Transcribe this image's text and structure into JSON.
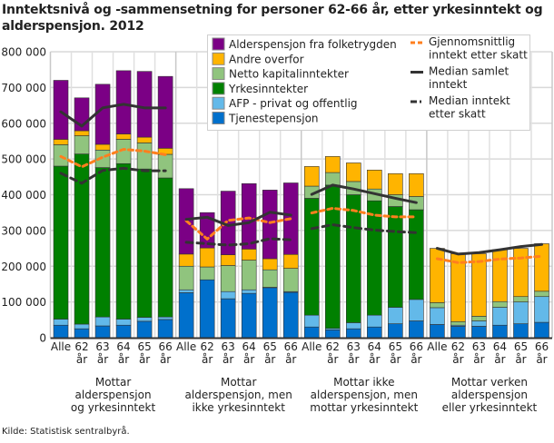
{
  "chart_data": {
    "type": "bar",
    "stacked": true,
    "title": "Inntektsnivå og -sammensetning for personer 62-66 år, etter yrkesinntekt og alderspensjon. 2012",
    "source": "Kilde: Statistisk sentralbyrå.",
    "ylim": [
      0,
      800000
    ],
    "yticks": [
      "0",
      "100 000",
      "200 000",
      "300 000",
      "400 000",
      "500 000",
      "600 000",
      "700 000",
      "800 000"
    ],
    "grid": true,
    "legend_position": "top-right",
    "category_labels": [
      [
        "Alle"
      ],
      [
        "62",
        "år"
      ],
      [
        "63",
        "år"
      ],
      [
        "64",
        "år"
      ],
      [
        "65",
        "år"
      ],
      [
        "66",
        "år"
      ]
    ],
    "groups": [
      {
        "label": [
          "Mottar",
          "alderspensjon",
          "og yrkesinntekt"
        ]
      },
      {
        "label": [
          "Mottar",
          "alderspensjon, men",
          "ikke yrkesinntekt"
        ]
      },
      {
        "label": [
          "Mottar ikke",
          "alderspensjon, men",
          "mottar yrkesinntekt"
        ]
      },
      {
        "label": [
          "Mottar verken",
          "alderspensjon",
          "eller yrkesinntekt"
        ]
      }
    ],
    "series": [
      {
        "name": "Tjenestepensjon",
        "color": "#0070cc",
        "values": [
          [
            35,
            25,
            33,
            35,
            46,
            51
          ],
          [
            126,
            162,
            109,
            124,
            140,
            127
          ],
          [
            30,
            22,
            25,
            30,
            39,
            47
          ],
          [
            37,
            32,
            32,
            35,
            39,
            43
          ]
        ]
      },
      {
        "name": "AFP - privat og offentlig",
        "color": "#63b9e9",
        "values": [
          [
            17,
            13,
            25,
            17,
            11,
            7
          ],
          [
            8,
            0,
            20,
            10,
            1,
            2
          ],
          [
            33,
            4,
            17,
            33,
            46,
            60
          ],
          [
            47,
            3,
            15,
            50,
            61,
            72
          ]
        ]
      },
      {
        "name": "Yrkesinntekter",
        "color": "#008000",
        "values": [
          [
            428,
            476,
            418,
            435,
            415,
            389
          ],
          [
            0,
            0,
            0,
            0,
            0,
            0
          ],
          [
            327,
            401,
            358,
            320,
            282,
            251
          ],
          [
            0,
            0,
            0,
            0,
            0,
            0
          ]
        ]
      },
      {
        "name": "Netto kapitalinntekter",
        "color": "#90c47e",
        "values": [
          [
            60,
            51,
            49,
            68,
            73,
            66
          ],
          [
            66,
            36,
            73,
            83,
            49,
            65
          ],
          [
            34,
            35,
            37,
            33,
            33,
            37
          ],
          [
            14,
            10,
            13,
            16,
            15,
            15
          ]
        ]
      },
      {
        "name": "Andre overfor",
        "color": "#ffb400",
        "values": [
          [
            15,
            14,
            16,
            15,
            16,
            17
          ],
          [
            34,
            53,
            30,
            31,
            31,
            39
          ],
          [
            55,
            45,
            52,
            53,
            59,
            64
          ],
          [
            152,
            190,
            175,
            145,
            135,
            133
          ]
        ]
      },
      {
        "name": "Alderspensjon fra folketrygden",
        "color": "#7b0085",
        "values": [
          [
            165,
            92,
            168,
            177,
            184,
            201
          ],
          [
            183,
            99,
            178,
            183,
            192,
            200
          ],
          [
            0,
            0,
            0,
            0,
            0,
            0
          ],
          [
            0,
            0,
            0,
            0,
            0,
            0
          ]
        ]
      }
    ],
    "value_unit_multiplier": 1000,
    "lines": [
      {
        "name": "Gjennomsnittlig inntekt etter skatt",
        "color": "#ff7f1e",
        "style": "dashed",
        "values": [
          [
            507,
            478,
            505,
            527,
            522,
            512
          ],
          [
            327,
            276,
            328,
            335,
            322,
            333
          ],
          [
            349,
            362,
            356,
            343,
            338,
            338
          ],
          [
            221,
            210,
            213,
            220,
            223,
            228
          ]
        ]
      },
      {
        "name": "Median samlet inntekt",
        "color": "#333333",
        "style": "solid",
        "values": [
          [
            632,
            592,
            643,
            653,
            643,
            643
          ],
          [
            331,
            337,
            314,
            322,
            351,
            343
          ],
          [
            401,
            427,
            416,
            403,
            390,
            378
          ],
          [
            250,
            234,
            238,
            246,
            255,
            261
          ]
        ]
      },
      {
        "name": "Median inntekt etter skatt",
        "color": "#333333",
        "style": "dash-dot",
        "values": [
          [
            460,
            432,
            468,
            474,
            467,
            467
          ],
          [
            267,
            263,
            259,
            263,
            277,
            274
          ],
          [
            305,
            316,
            308,
            301,
            297,
            294
          ],
          [
            null,
            null,
            null,
            null,
            null,
            null
          ]
        ]
      }
    ],
    "legend": {
      "bars": [
        "Alderspensjon fra folketrygden",
        "Andre overfor",
        "Netto kapitalinntekter",
        "Yrkesinntekter",
        "AFP - privat og offentlig",
        "Tjenestepensjon"
      ],
      "lines": [
        [
          "Gjennomsnittlig",
          "inntekt etter skatt"
        ],
        [
          "Median samlet",
          "inntekt"
        ],
        [
          "Median inntekt",
          "etter skatt"
        ]
      ]
    }
  }
}
